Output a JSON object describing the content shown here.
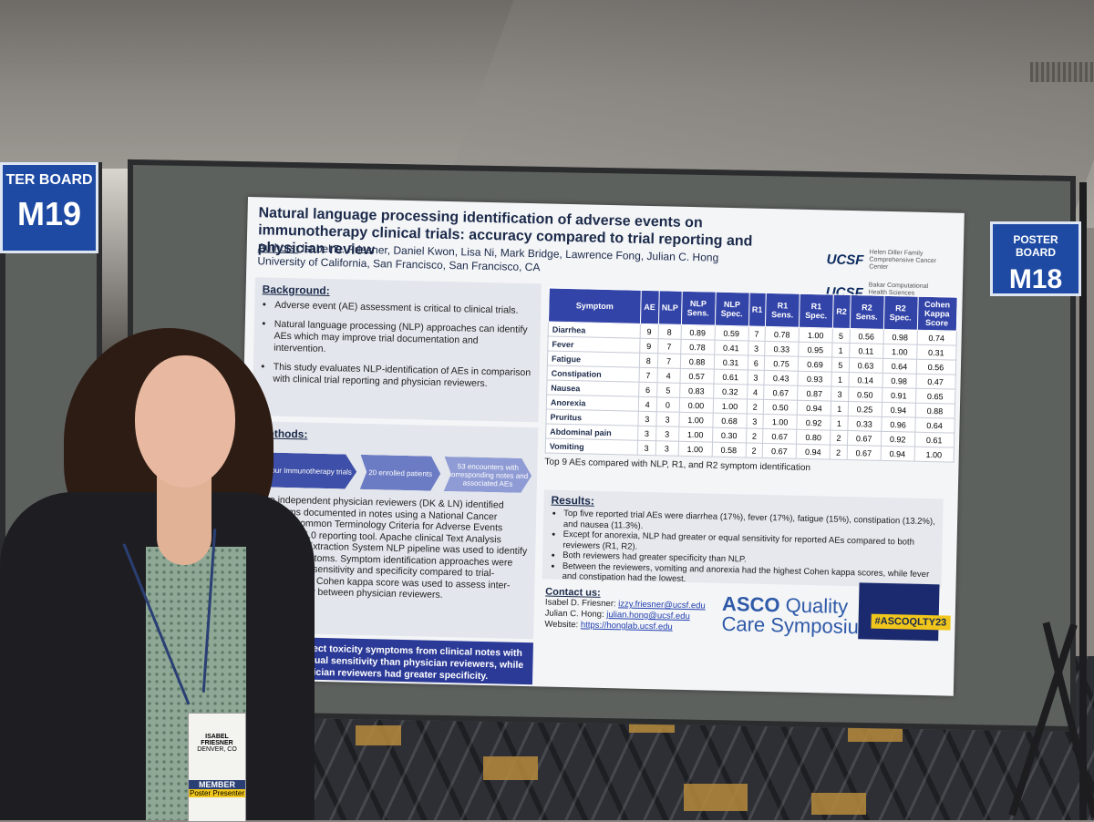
{
  "sign_left": {
    "line1": "TER BOARD",
    "line2": "M19"
  },
  "sign_right": {
    "line1": "POSTER BOARD",
    "line2": "M18"
  },
  "poster": {
    "title": "Natural language processing identification of adverse events on immunotherapy clinical trials: accuracy compared to trial reporting and physician review",
    "authors_label": "Authors:",
    "authors": "Isabel D. Friesner, Daniel Kwon, Lisa Ni, Mark Bridge, Lawrence Fong, Julian C. Hong",
    "affiliation": "University of California, San Francisco, San Francisco, CA",
    "logos": [
      {
        "mark": "UCSF",
        "text": "Helen Diller Family Comprehensive Cancer Center"
      },
      {
        "mark": "UCSF",
        "text": "Bakar Computational Health Sciences Institute"
      }
    ],
    "background": {
      "heading": "Background:",
      "items": [
        "Adverse event (AE) assessment is critical to clinical trials.",
        "Natural language processing (NLP) approaches can identify AEs which may improve trial documentation and intervention.",
        "This study evaluates NLP-identification of AEs in comparison with clinical trial reporting and physician reviewers."
      ]
    },
    "methods": {
      "heading": "Methods:",
      "flow": [
        "Four Immunotherapy trials",
        "20 enrolled patients",
        "53 encounters with corresponding notes and associated AEs"
      ],
      "text": "Two independent physician reviewers (DK & LN) identified symptoms documented in notes using a National Cancer Institute Common Terminology Criteria for Adverse Events (CTCAE) v5.0 reporting tool. Apache clinical Text Analysis Knowledge Extraction System NLP pipeline was used to identify CTCAE symptoms. Symptom identification approaches were assessed for sensitivity and specificity compared to trial-reported AEs. Cohen kappa score was used to assess inter-rater reliability between physician reviewers."
    },
    "conclusion": "NLP can detect toxicity symptoms from clinical notes with greater or equal sensitivity than physician reviewers, while physician reviewers had greater specificity.",
    "table": {
      "headers": [
        "Symptom",
        "AE",
        "NLP",
        "NLP Sens.",
        "NLP Spec.",
        "R1",
        "R1 Sens.",
        "R1 Spec.",
        "R2",
        "R2 Sens.",
        "R2 Spec.",
        "Cohen Kappa Score"
      ],
      "rows": [
        [
          "Diarrhea",
          "9",
          "8",
          "0.89",
          "0.59",
          "7",
          "0.78",
          "1.00",
          "5",
          "0.56",
          "0.98",
          "0.74"
        ],
        [
          "Fever",
          "9",
          "7",
          "0.78",
          "0.41",
          "3",
          "0.33",
          "0.95",
          "1",
          "0.11",
          "1.00",
          "0.31"
        ],
        [
          "Fatigue",
          "8",
          "7",
          "0.88",
          "0.31",
          "6",
          "0.75",
          "0.69",
          "5",
          "0.63",
          "0.64",
          "0.56"
        ],
        [
          "Constipation",
          "7",
          "4",
          "0.57",
          "0.61",
          "3",
          "0.43",
          "0.93",
          "1",
          "0.14",
          "0.98",
          "0.47"
        ],
        [
          "Nausea",
          "6",
          "5",
          "0.83",
          "0.32",
          "4",
          "0.67",
          "0.87",
          "3",
          "0.50",
          "0.91",
          "0.65"
        ],
        [
          "Anorexia",
          "4",
          "0",
          "0.00",
          "1.00",
          "2",
          "0.50",
          "0.94",
          "1",
          "0.25",
          "0.94",
          "0.88"
        ],
        [
          "Pruritus",
          "3",
          "3",
          "1.00",
          "0.68",
          "3",
          "1.00",
          "0.92",
          "1",
          "0.33",
          "0.96",
          "0.64"
        ],
        [
          "Abdominal pain",
          "3",
          "3",
          "1.00",
          "0.30",
          "2",
          "0.67",
          "0.80",
          "2",
          "0.67",
          "0.92",
          "0.61"
        ],
        [
          "Vomiting",
          "3",
          "3",
          "1.00",
          "0.58",
          "2",
          "0.67",
          "0.94",
          "2",
          "0.67",
          "0.94",
          "1.00"
        ]
      ],
      "caption": "Top 9 AEs compared with NLP, R1, and R2 symptom identification"
    },
    "results": {
      "heading": "Results:",
      "items": [
        "Top five reported trial AEs were diarrhea (17%), fever (17%), fatigue (15%), constipation (13.2%), and nausea (11.3%).",
        "Except for anorexia, NLP had greater or equal sensitivity for reported AEs compared to both reviewers (R1, R2).",
        "Both reviewers had greater specificity than NLP.",
        "Between the reviewers, vomiting and anorexia had the highest Cohen kappa scores, while fever and constipation had the lowest."
      ]
    },
    "contact": {
      "heading": "Contact us:",
      "lines": [
        {
          "label": "Isabel D. Friesner:",
          "value": "izzy.friesner@ucsf.edu"
        },
        {
          "label": "Julian C. Hong:",
          "value": "julian.hong@ucsf.edu"
        },
        {
          "label": "Website:",
          "value": "https://honglab.ucsf.edu"
        }
      ]
    },
    "asco": {
      "brand": "ASCO",
      "line1": "Quality",
      "line2": "Care Symposium"
    },
    "hashtag": "#ASCOQLTY23"
  },
  "badge": {
    "name": "ISABEL FRIESNER",
    "city": "DENVER, CO",
    "type": "MEMBER",
    "footer": "Poster Presenter"
  }
}
